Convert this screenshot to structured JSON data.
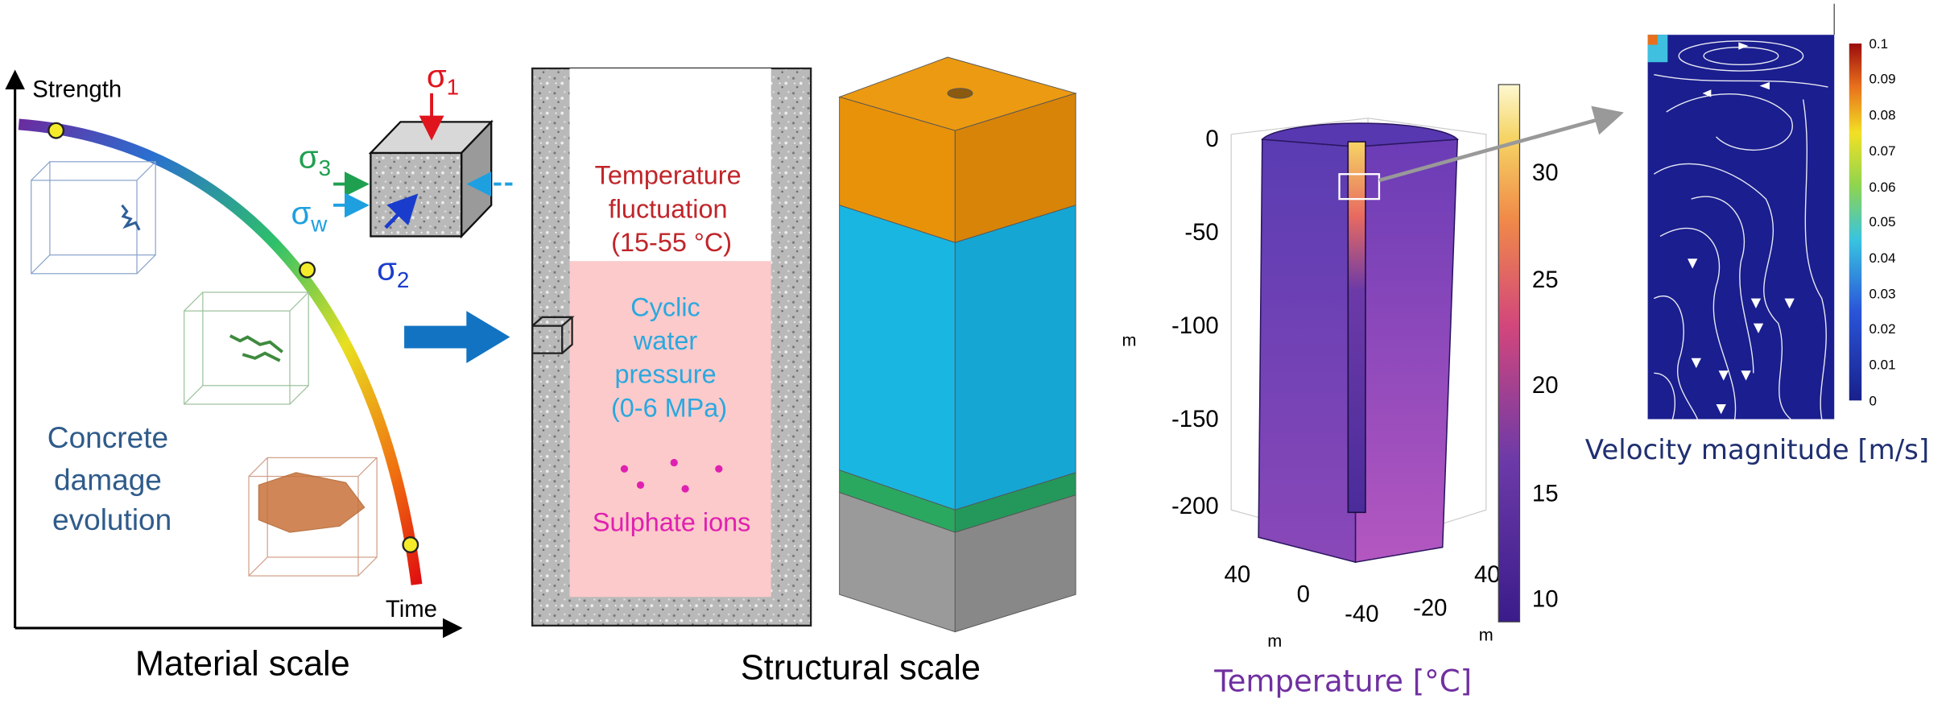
{
  "material_scale": {
    "axis_y": "Strength",
    "axis_x": "Time",
    "caption": "Material scale",
    "label_lines": [
      "Concrete",
      "damage",
      "evolution"
    ],
    "sigma": "σ",
    "subscripts": [
      "1",
      "3",
      "w",
      "2"
    ]
  },
  "structural_scale": {
    "caption": "Structural scale",
    "temperature_lines": [
      "Temperature",
      "fluctuation",
      "(15-55 °C)"
    ],
    "pressure_lines": [
      "Cyclic",
      "water",
      "pressure",
      "(0-6 MPa)"
    ],
    "ions": "Sulphate ions"
  },
  "temperature_plot": {
    "caption": "Temperature [°C]",
    "z_unit": "m",
    "z_ticks": [
      "0",
      "-50",
      "-100",
      "-150",
      "-200"
    ],
    "x_ticks": [
      "40",
      "0",
      "-40"
    ],
    "y_ticks": [
      "-20",
      "40"
    ],
    "x_unit": "m",
    "y_unit": "m",
    "colorbar_ticks": [
      "30",
      "25",
      "20",
      "15",
      "10"
    ]
  },
  "velocity_plot": {
    "caption": "Velocity magnitude [m/s]",
    "colorbar_ticks": [
      "0.1",
      "0.09",
      "0.08",
      "0.07",
      "0.06",
      "0.05",
      "0.04",
      "0.03",
      "0.02",
      "0.01",
      "0"
    ]
  }
}
